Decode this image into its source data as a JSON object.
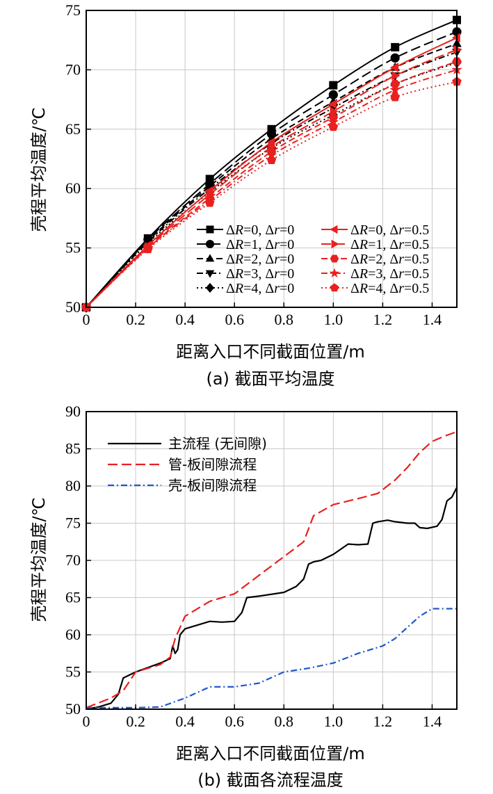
{
  "chart_data": [
    {
      "type": "line",
      "panel": "a",
      "caption": "(a) 截面平均温度",
      "xlabel": "距离入口不同截面位置/m",
      "ylabel": "壳程平均温度/℃",
      "xlim": [
        0,
        1.5
      ],
      "ylim": [
        50,
        75
      ],
      "xticks": [
        0,
        0.2,
        0.4,
        0.6,
        0.8,
        1.0,
        1.2,
        1.4
      ],
      "xtick_labels": [
        "0",
        "0.2",
        "0.4",
        "0.6",
        "0.8",
        "1.0",
        "1.2",
        "1.4"
      ],
      "yticks": [
        50,
        55,
        60,
        65,
        70,
        75
      ],
      "ytick_labels": [
        "50",
        "55",
        "60",
        "65",
        "70",
        "75"
      ],
      "grid": true,
      "legend_position": "bottom-right",
      "x": [
        0,
        0.25,
        0.5,
        0.75,
        1.0,
        1.25,
        1.5
      ],
      "series": [
        {
          "name": "ΔR=0, Δr=0",
          "label_parts": [
            "Δ",
            "R",
            "=0, Δ",
            "r",
            "=0"
          ],
          "color": "#000000",
          "dash": "solid",
          "marker": "square",
          "values": [
            50,
            55.8,
            60.8,
            65.0,
            68.7,
            71.9,
            74.2
          ]
        },
        {
          "name": "ΔR=1, Δr=0",
          "label_parts": [
            "Δ",
            "R",
            "=1, Δ",
            "r",
            "=0"
          ],
          "color": "#000000",
          "dash": "long-dash",
          "marker": "circle",
          "values": [
            50,
            55.7,
            60.4,
            64.6,
            67.9,
            71.0,
            73.2
          ]
        },
        {
          "name": "ΔR=2, Δr=0",
          "label_parts": [
            "Δ",
            "R",
            "=2, Δ",
            "r",
            "=0"
          ],
          "color": "#000000",
          "dash": "dash",
          "marker": "triangle-up",
          "values": [
            50,
            55.6,
            60.2,
            64.2,
            67.3,
            70.2,
            72.2
          ]
        },
        {
          "name": "ΔR=3, Δr=0",
          "label_parts": [
            "Δ",
            "R",
            "=3, Δ",
            "r",
            "=0"
          ],
          "color": "#000000",
          "dash": "dash-dot",
          "marker": "triangle-down",
          "values": [
            50,
            55.5,
            60.0,
            63.8,
            66.8,
            69.5,
            71.5
          ]
        },
        {
          "name": "ΔR=4, Δr=0",
          "label_parts": [
            "Δ",
            "R",
            "=4, Δ",
            "r",
            "=0"
          ],
          "color": "#000000",
          "dash": "dot",
          "marker": "diamond",
          "values": [
            50,
            55.4,
            59.7,
            63.4,
            66.2,
            68.8,
            70.6
          ]
        },
        {
          "name": "ΔR=0, Δr=0.5",
          "label_parts": [
            "Δ",
            "R",
            "=0, Δ",
            "r",
            "=0.5"
          ],
          "color": "#e8201f",
          "dash": "solid",
          "marker": "triangle-left",
          "values": [
            50,
            55.2,
            59.8,
            63.9,
            67.1,
            70.2,
            72.7
          ]
        },
        {
          "name": "ΔR=1, Δr=0.5",
          "label_parts": [
            "Δ",
            "R",
            "=1, Δ",
            "r",
            "=0.5"
          ],
          "color": "#e8201f",
          "dash": "long-dash",
          "marker": "triangle-right",
          "values": [
            50,
            55.1,
            59.5,
            63.5,
            66.5,
            69.5,
            71.7
          ]
        },
        {
          "name": "ΔR=2, Δr=0.5",
          "label_parts": [
            "Δ",
            "R",
            "=2, Δ",
            "r",
            "=0.5"
          ],
          "color": "#e8201f",
          "dash": "dash",
          "marker": "hexagon",
          "values": [
            50,
            55.0,
            59.2,
            63.1,
            66.0,
            68.8,
            70.7
          ]
        },
        {
          "name": "ΔR=3, Δr=0.5",
          "label_parts": [
            "Δ",
            "R",
            "=3, Δ",
            "r",
            "=0.5"
          ],
          "color": "#e8201f",
          "dash": "dash-dot",
          "marker": "star",
          "values": [
            50,
            55.0,
            59.0,
            62.8,
            65.6,
            68.3,
            70.0
          ]
        },
        {
          "name": "ΔR=4, Δr=0.5",
          "label_parts": [
            "Δ",
            "R",
            "=4, Δ",
            "r",
            "=0.5"
          ],
          "color": "#e8201f",
          "dash": "dot",
          "marker": "pentagon",
          "values": [
            50,
            54.9,
            58.8,
            62.4,
            65.2,
            67.7,
            69.0
          ]
        }
      ]
    },
    {
      "type": "line",
      "panel": "b",
      "caption": "(b) 截面各流程温度",
      "xlabel": "距离入口不同截面位置/m",
      "ylabel": "壳程平均温度/℃",
      "xlim": [
        0,
        1.5
      ],
      "ylim": [
        50,
        90
      ],
      "xticks": [
        0,
        0.2,
        0.4,
        0.6,
        0.8,
        1.0,
        1.2,
        1.4
      ],
      "xtick_labels": [
        "0",
        "0.2",
        "0.4",
        "0.6",
        "0.8",
        "1.0",
        "1.2",
        "1.4"
      ],
      "yticks": [
        50,
        55,
        60,
        65,
        70,
        75,
        80,
        85,
        90
      ],
      "ytick_labels": [
        "50",
        "55",
        "60",
        "65",
        "70",
        "75",
        "80",
        "85",
        "90"
      ],
      "grid": true,
      "legend_position": "top-left",
      "series": [
        {
          "name": "主流程 (无间隙)",
          "color": "#000000",
          "dash": "solid",
          "x": [
            0,
            0.05,
            0.1,
            0.13,
            0.15,
            0.2,
            0.3,
            0.34,
            0.35,
            0.36,
            0.37,
            0.38,
            0.4,
            0.5,
            0.55,
            0.6,
            0.63,
            0.65,
            0.7,
            0.8,
            0.85,
            0.88,
            0.9,
            0.92,
            0.95,
            1.0,
            1.03,
            1.06,
            1.1,
            1.14,
            1.16,
            1.18,
            1.22,
            1.25,
            1.3,
            1.33,
            1.35,
            1.38,
            1.42,
            1.44,
            1.46,
            1.48,
            1.5
          ],
          "values": [
            50,
            50.3,
            50.8,
            52.0,
            54.2,
            55.0,
            56.2,
            56.8,
            58.5,
            57.5,
            58.0,
            60.0,
            60.8,
            61.8,
            61.7,
            61.8,
            63.0,
            65.0,
            65.2,
            65.7,
            66.5,
            67.5,
            69.5,
            69.8,
            70.0,
            70.8,
            71.5,
            72.2,
            72.1,
            72.2,
            75.0,
            75.2,
            75.4,
            75.2,
            75.0,
            75.0,
            74.4,
            74.3,
            74.6,
            75.5,
            78.0,
            78.5,
            79.8
          ]
        },
        {
          "name": "管-板间隙流程",
          "color": "#e8201f",
          "dash": "long-dash",
          "x": [
            0,
            0.1,
            0.15,
            0.2,
            0.3,
            0.34,
            0.36,
            0.4,
            0.5,
            0.6,
            0.7,
            0.8,
            0.88,
            0.92,
            1.0,
            1.1,
            1.18,
            1.25,
            1.3,
            1.35,
            1.4,
            1.45,
            1.5
          ],
          "values": [
            50.2,
            51.5,
            52.5,
            55.0,
            56.0,
            57.0,
            59.5,
            62.5,
            64.5,
            65.5,
            68.0,
            70.5,
            72.5,
            76.0,
            77.5,
            78.3,
            79.0,
            80.8,
            82.5,
            84.5,
            86.0,
            86.7,
            87.3
          ]
        },
        {
          "name": "壳-板间隙流程",
          "color": "#2157c8",
          "dash": "dash-dot",
          "x": [
            0,
            0.1,
            0.2,
            0.3,
            0.4,
            0.5,
            0.6,
            0.7,
            0.8,
            0.9,
            1.0,
            1.1,
            1.2,
            1.25,
            1.3,
            1.35,
            1.4,
            1.45,
            1.5
          ],
          "values": [
            50.2,
            50.2,
            50.2,
            50.3,
            51.5,
            53.0,
            53.0,
            53.5,
            55.0,
            55.5,
            56.2,
            57.5,
            58.5,
            59.5,
            61.0,
            62.5,
            63.5,
            63.5,
            63.5
          ]
        }
      ]
    }
  ]
}
